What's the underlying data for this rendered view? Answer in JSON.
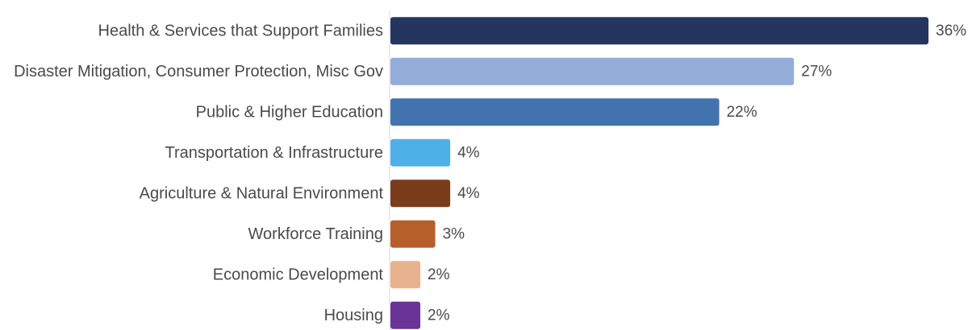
{
  "chart_data": {
    "type": "bar",
    "orientation": "horizontal",
    "title": "",
    "xlabel": "",
    "ylabel": "",
    "grid": false,
    "legend": "none",
    "xlim": [
      0,
      36
    ],
    "value_suffix": "%",
    "categories": [
      "Health & Services that Support Families",
      "Disaster Mitigation, Consumer Protection, Misc Gov",
      "Public & Higher Education",
      "Transportation & Infrastructure",
      "Agriculture & Natural Environment",
      "Workforce Training",
      "Economic Development",
      "Housing"
    ],
    "values": [
      36,
      27,
      22,
      4,
      4,
      3,
      2,
      2
    ],
    "colors": [
      "#24355f",
      "#94acd8",
      "#4373ae",
      "#4fb0e8",
      "#793d1c",
      "#b75f2a",
      "#e9b28f",
      "#6a3397"
    ]
  }
}
